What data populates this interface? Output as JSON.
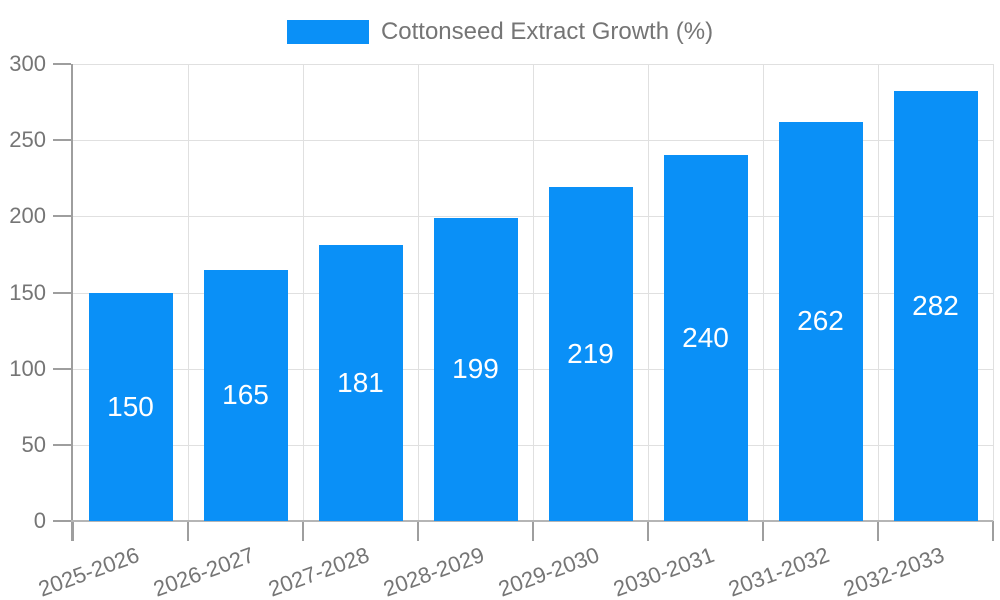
{
  "chart_data": {
    "type": "bar",
    "title": "Cottonseed Extract Growth (%)",
    "categories": [
      "2025-2026",
      "2026-2027",
      "2027-2028",
      "2028-2029",
      "2029-2030",
      "2030-2031",
      "2031-2032",
      "2032-2033"
    ],
    "series": [
      {
        "name": "Cottonseed Extract Growth (%)",
        "values": [
          150,
          165,
          181,
          199,
          219,
          240,
          262,
          282
        ]
      }
    ],
    "values": [
      150,
      165,
      181,
      199,
      219,
      240,
      262,
      282
    ],
    "value_labels_shown": true,
    "xlabel": "",
    "ylabel": "",
    "ylim": [
      0,
      300
    ],
    "yticks": [
      0,
      50,
      100,
      150,
      200,
      250,
      300
    ],
    "grid": true,
    "legend_position": "top-center",
    "x_tick_rotation_deg": -20,
    "colors": {
      "bar": "#0a90f7",
      "grid": "#e0e0e0",
      "axis": "#9e9e9e",
      "tick_text": "#757575",
      "legend_text": "#757575",
      "value_label": "#ffffff",
      "background": "#ffffff"
    }
  }
}
